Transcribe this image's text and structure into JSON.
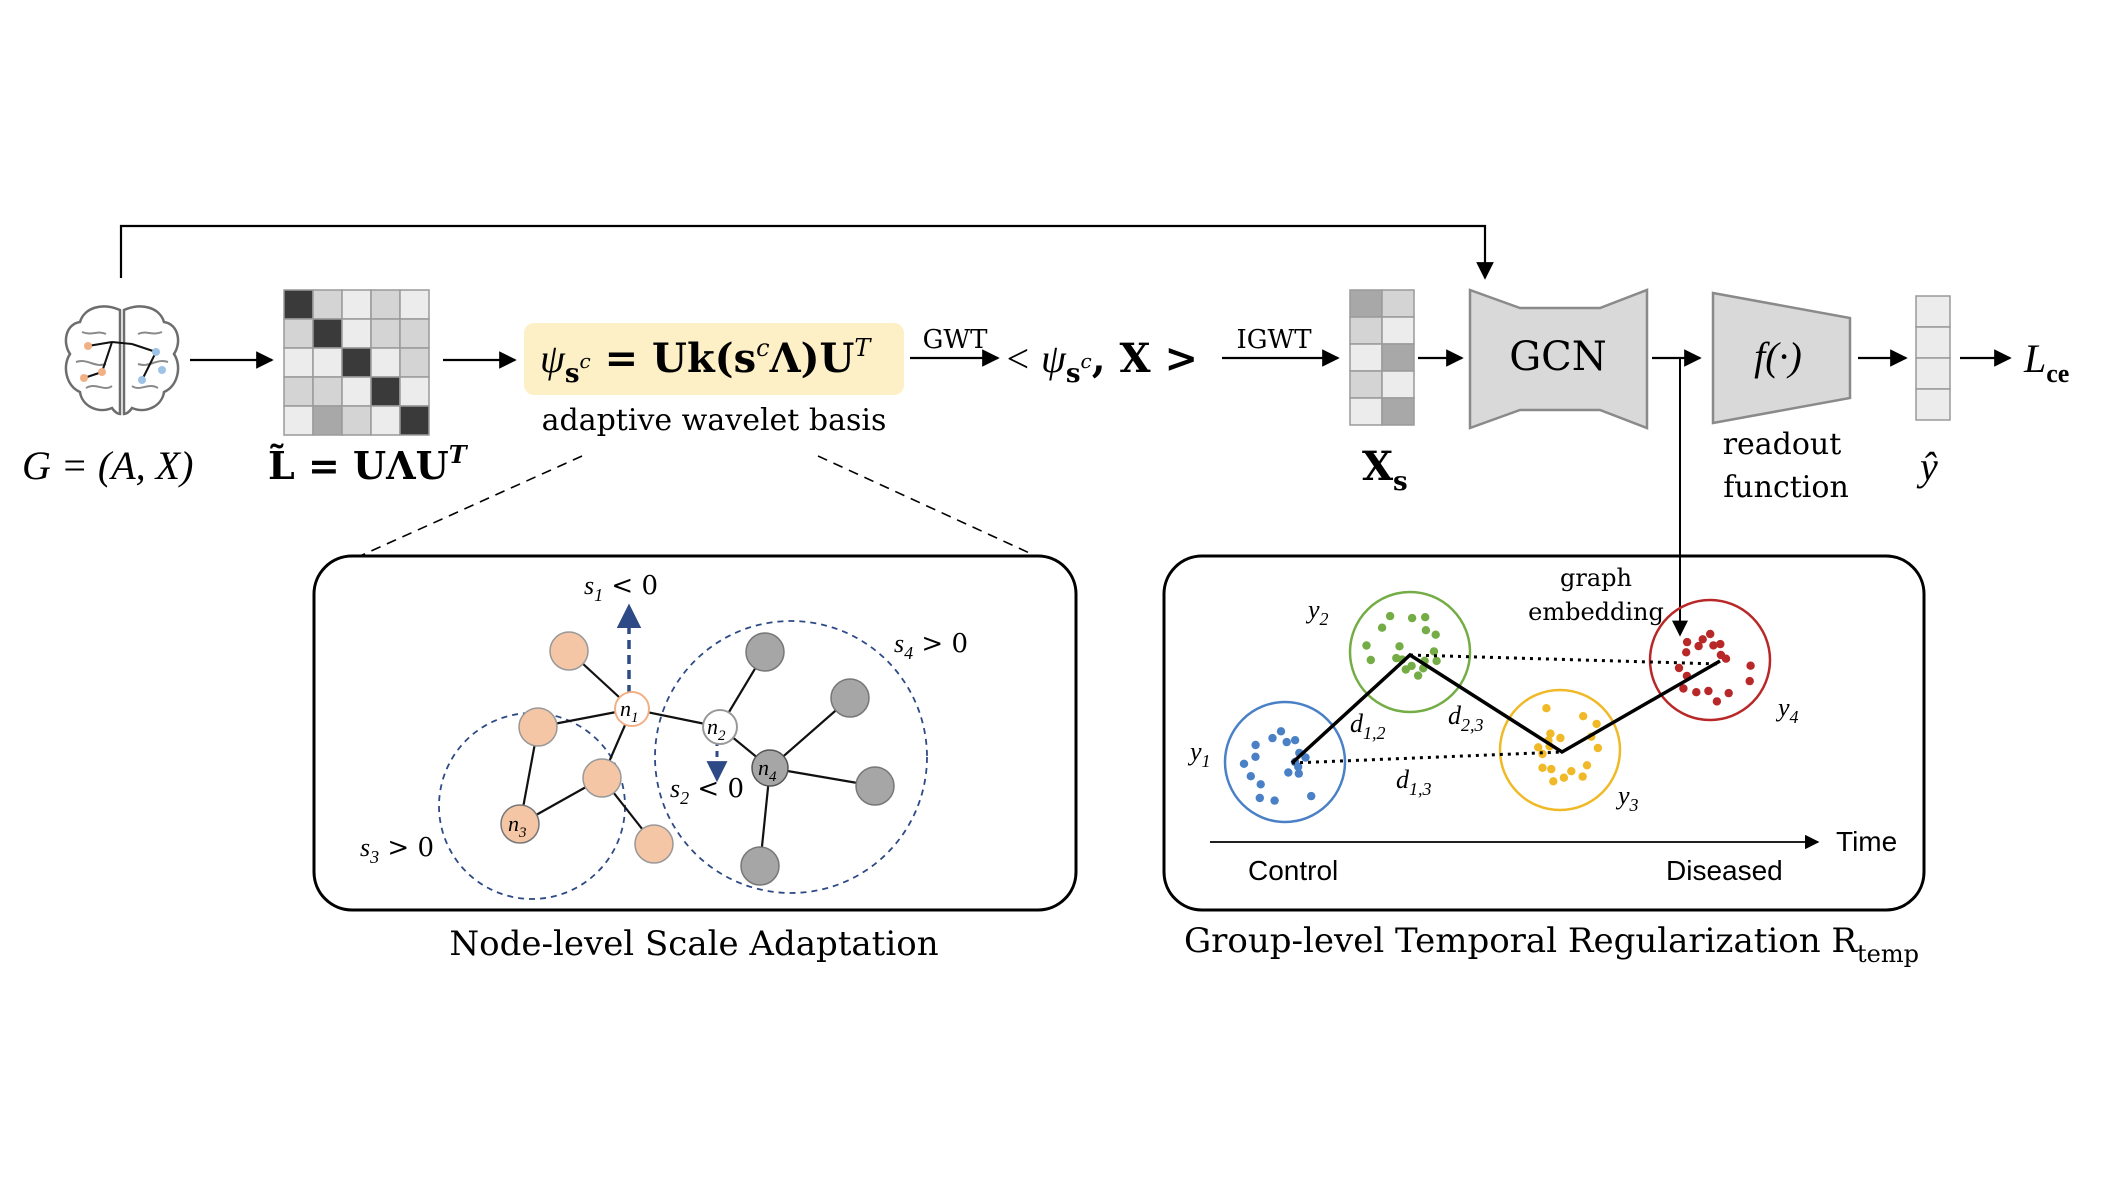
{
  "input": {
    "graph_label": "G = (A, X)",
    "brain_icon": "brain-icon"
  },
  "laplacian": {
    "label": "L̃ = UΛU",
    "label_sup": "T"
  },
  "wavelet": {
    "formula": "ψ",
    "formula_sub": "s",
    "formula_sub_sup": "c",
    "formula_rest": " = Uk(s",
    "formula_rest_sup": "c",
    "formula_end": "Λ)U",
    "formula_end_sup": "T",
    "caption": "adaptive wavelet basis",
    "highlight_color": "#fdf0c6"
  },
  "transforms": {
    "gwt": "GWT",
    "inner_product": "< ψ",
    "inner_sub": "s",
    "inner_sub_sup": "c",
    "inner_rest": ", X >",
    "igwt": "IGWT"
  },
  "xs": {
    "label": "X",
    "label_sub": "s"
  },
  "gcn": {
    "label": "GCN"
  },
  "readout": {
    "symbol": "f(·)",
    "caption_line1": "readout",
    "caption_line2": "function"
  },
  "output": {
    "yhat": "ŷ",
    "loss": "L",
    "loss_sub": "ce"
  },
  "node_panel": {
    "title": "Node-level Scale Adaptation",
    "s1": "s",
    "s1_sub": "1",
    "s1_rel": " < 0",
    "s2": "s",
    "s2_sub": "2",
    "s2_rel": " < 0",
    "s3": "s",
    "s3_sub": "3",
    "s3_rel": " > 0",
    "s4": "s",
    "s4_sub": "4",
    "s4_rel": " > 0",
    "n1": "n",
    "n1_sub": "1",
    "n2": "n",
    "n2_sub": "2",
    "n3": "n",
    "n3_sub": "3",
    "n4": "n",
    "n4_sub": "4",
    "colors": {
      "peach": "#f5c6a5",
      "gray": "#a6a6a6",
      "arrow": "#2e4a86"
    }
  },
  "group_panel": {
    "title": "Group-level Temporal Regularization R",
    "title_sub": "temp",
    "graph_embedding_line1": "graph",
    "graph_embedding_line2": "embedding",
    "y1": "y",
    "y1_sub": "1",
    "y2": "y",
    "y2_sub": "2",
    "y3": "y",
    "y3_sub": "3",
    "y4": "y",
    "y4_sub": "4",
    "d12": "d",
    "d12_sub": "1,2",
    "d23": "d",
    "d23_sub": "2,3",
    "d13": "d",
    "d13_sub": "1,3",
    "time_label": "Time",
    "control_label": "Control",
    "diseased_label": "Diseased",
    "colors": {
      "blue": "#4a80c6",
      "green": "#74ad45",
      "yellow": "#f0b928",
      "red": "#b82828"
    }
  }
}
